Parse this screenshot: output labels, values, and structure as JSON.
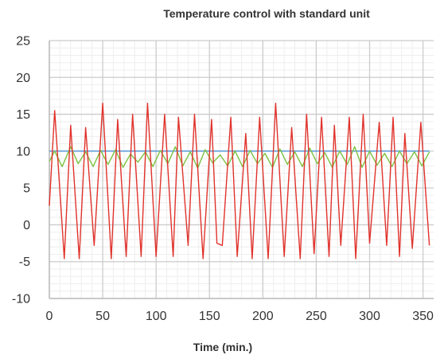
{
  "chart_data": {
    "type": "line",
    "title": "Temperature control with standard unit",
    "xlabel": "Time (min.)",
    "ylabel": "",
    "xlim": [
      0,
      360
    ],
    "ylim": [
      -10,
      25
    ],
    "x_ticks": [
      0,
      50,
      100,
      150,
      200,
      250,
      300,
      350
    ],
    "y_ticks": [
      -10,
      -5,
      0,
      5,
      10,
      15,
      20,
      25
    ],
    "x_tick_labels": [
      "0",
      "50",
      "100",
      "150",
      "200",
      "250",
      "300",
      "350"
    ],
    "y_tick_labels": [
      "-10",
      "-5",
      "0",
      "5",
      "10",
      "15",
      "20",
      "25"
    ],
    "grid": true,
    "series": [
      {
        "color": "#4a90d9",
        "x": [
          0,
          356
        ],
        "y": [
          10,
          10
        ]
      },
      {
        "color": "#7cc242",
        "x": [
          0,
          5,
          12,
          20,
          27,
          34,
          41,
          48,
          55,
          62,
          69,
          76,
          83,
          90,
          97,
          104,
          111,
          118,
          125,
          132,
          139,
          146,
          153,
          160,
          167,
          174,
          181,
          188,
          195,
          202,
          209,
          216,
          223,
          230,
          237,
          244,
          251,
          258,
          265,
          272,
          279,
          286,
          293,
          300,
          307,
          314,
          321,
          328,
          335,
          342,
          349,
          356
        ],
        "y": [
          8.6,
          10.0,
          7.9,
          10.6,
          8.3,
          9.9,
          7.9,
          10.1,
          8.2,
          10.2,
          7.8,
          9.6,
          8.5,
          9.9,
          7.9,
          10.1,
          8.3,
          10.6,
          8.0,
          9.9,
          7.7,
          10.2,
          8.4,
          9.5,
          8.0,
          10.0,
          7.9,
          10.1,
          8.3,
          9.7,
          7.8,
          10.3,
          8.2,
          9.9,
          7.9,
          10.4,
          8.3,
          9.8,
          7.8,
          10.0,
          8.2,
          10.6,
          7.8,
          10.0,
          8.1,
          9.7,
          7.9,
          10.0,
          8.3,
          9.9,
          8.0,
          9.9
        ]
      },
      {
        "color": "#e0322b",
        "x": [
          0,
          5,
          14,
          20,
          28,
          34,
          42,
          50,
          58,
          64,
          72,
          78,
          86,
          92,
          100,
          108,
          116,
          121,
          130,
          136,
          144,
          152,
          157,
          162,
          170,
          176,
          184,
          190,
          197,
          205,
          212,
          220,
          227,
          235,
          241,
          248,
          255,
          262,
          267,
          273,
          281,
          287,
          294,
          300,
          309,
          316,
          322,
          328,
          333,
          340,
          348,
          356
        ],
        "y": [
          2.6,
          15.5,
          -4.6,
          13.5,
          -4.6,
          13.2,
          -2.8,
          16.5,
          -4.6,
          14.3,
          -4.3,
          15.0,
          -4.3,
          16.5,
          -4.3,
          15.0,
          -4.3,
          14.6,
          -2.8,
          15.0,
          -4.6,
          14.3,
          -2.5,
          -2.8,
          14.6,
          -4.3,
          12.4,
          -4.6,
          14.6,
          -4.6,
          16.5,
          -4.3,
          13.2,
          -4.6,
          15.0,
          -3.9,
          14.6,
          -4.3,
          13.5,
          -2.8,
          14.6,
          -4.6,
          15.0,
          -2.5,
          13.9,
          -2.8,
          14.6,
          -4.3,
          12.4,
          -3.2,
          13.9,
          -2.8
        ]
      }
    ]
  }
}
